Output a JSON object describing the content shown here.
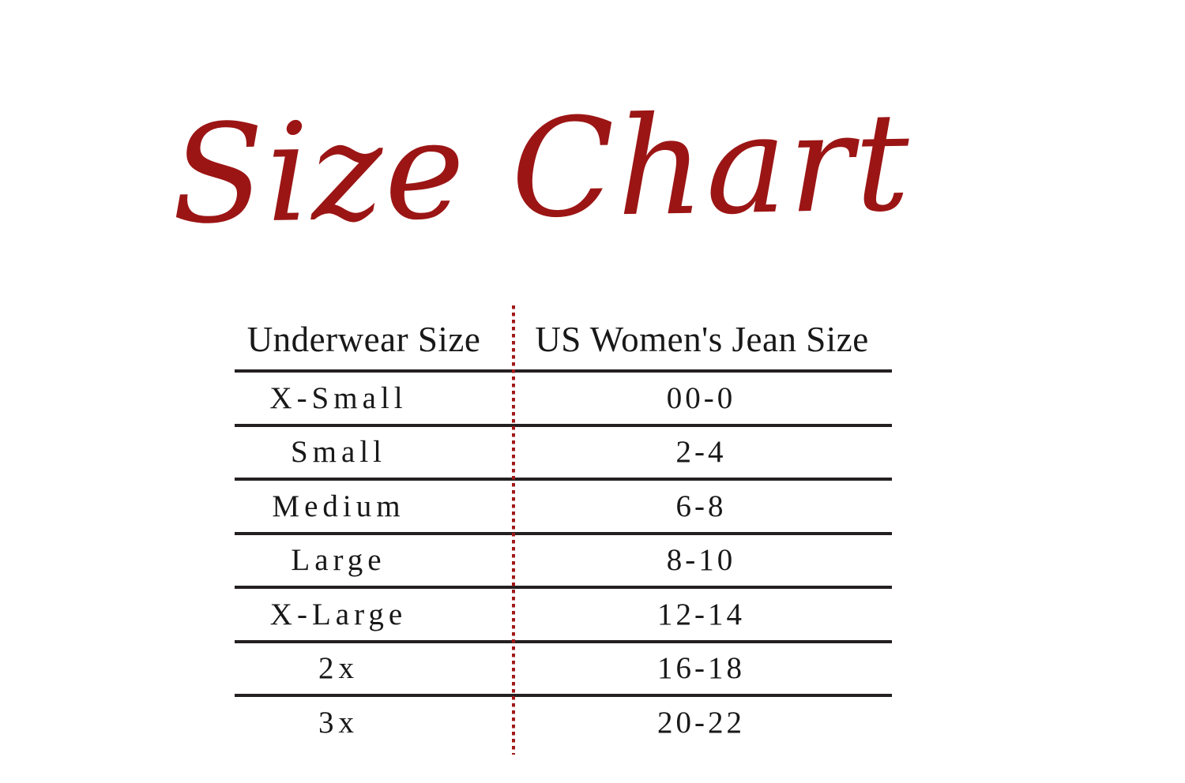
{
  "title": {
    "text": "Size Chart",
    "color": "#9c1515"
  },
  "table": {
    "columns": [
      "Underwear Size",
      "US Women's Jean Size"
    ],
    "rows": [
      {
        "size": "X-Small",
        "jean": "00-0"
      },
      {
        "size": "Small",
        "jean": "2-4"
      },
      {
        "size": "Medium",
        "jean": "6-8"
      },
      {
        "size": "Large",
        "jean": "8-10"
      },
      {
        "size": "X-Large",
        "jean": "12-14"
      },
      {
        "size": "2x",
        "jean": "16-18"
      },
      {
        "size": "3x",
        "jean": "20-22"
      }
    ],
    "rule_color": "#242021",
    "divider_color": "#a11818"
  },
  "chart_data": {
    "type": "table",
    "title": "Size Chart",
    "columns": [
      "Underwear Size",
      "US Women's Jean Size"
    ],
    "rows": [
      [
        "X-Small",
        "00-0"
      ],
      [
        "Small",
        "2-4"
      ],
      [
        "Medium",
        "6-8"
      ],
      [
        "Large",
        "8-10"
      ],
      [
        "X-Large",
        "12-14"
      ],
      [
        "2x",
        "16-18"
      ],
      [
        "3x",
        "20-22"
      ]
    ],
    "layout": {
      "divider_style": "red dotted vertical line between columns",
      "row_rules": "solid dark horizontal lines between rows",
      "grid": "horizontal rules only, no outer border"
    }
  }
}
